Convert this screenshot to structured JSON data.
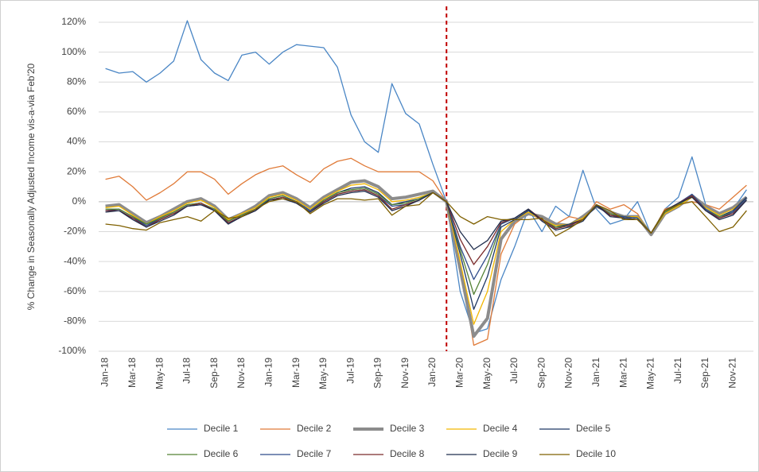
{
  "chart_data": {
    "type": "line",
    "y_label": "% Change in Seasonally Adjusted Income vis-a-via Feb'20",
    "categories": [
      "Jan-18",
      null,
      "Mar-18",
      null,
      "May-18",
      null,
      "Jul-18",
      null,
      "Sep-18",
      null,
      "Nov-18",
      null,
      "Jan-19",
      null,
      "Mar-19",
      null,
      "May-19",
      null,
      "Jul-19",
      null,
      "Sep-19",
      null,
      "Nov-19",
      null,
      "Jan-20",
      null,
      "Mar-20",
      null,
      "May-20",
      null,
      "Jul-20",
      null,
      "Sep-20",
      null,
      "Nov-20",
      null,
      "Jan-21",
      null,
      "Mar-21",
      null,
      "May-21",
      null,
      "Jul-21",
      null,
      "Sep-21",
      null,
      "Nov-21",
      null
    ],
    "ylim": [
      -100,
      120
    ],
    "yticks": [
      {
        "value": -100,
        "label": "-100%"
      },
      {
        "value": -80,
        "label": "-80%"
      },
      {
        "value": -60,
        "label": "-60%"
      },
      {
        "value": -40,
        "label": "-40%"
      },
      {
        "value": -20,
        "label": "-20%"
      },
      {
        "value": 0,
        "label": "0%"
      },
      {
        "value": 20,
        "label": "20%"
      },
      {
        "value": 40,
        "label": "40%"
      },
      {
        "value": 60,
        "label": "60%"
      },
      {
        "value": 80,
        "label": "80%"
      },
      {
        "value": 100,
        "label": "100%"
      },
      {
        "value": 120,
        "label": "120%"
      }
    ],
    "grid": true,
    "reference_line": {
      "index": 25,
      "color": "#c00000"
    },
    "legend": "bottom",
    "series": [
      {
        "name": "Decile 1",
        "color": "#4a86c5",
        "width": 1.3,
        "values": [
          89,
          86,
          87,
          80,
          86,
          94,
          121,
          95,
          86,
          81,
          98,
          100,
          92,
          100,
          105,
          104,
          103,
          90,
          58,
          40,
          33,
          79,
          59,
          52,
          25,
          0,
          -60,
          -88,
          -85,
          -52,
          -30,
          -5,
          -20,
          -3,
          -10,
          21,
          -5,
          -15,
          -12,
          0,
          -22,
          -5,
          3,
          30,
          -2,
          -8,
          -5,
          8
        ]
      },
      {
        "name": "Decile 2",
        "color": "#e07b39",
        "width": 1.3,
        "values": [
          15,
          17,
          10,
          1,
          6,
          12,
          20,
          20,
          15,
          5,
          12,
          18,
          22,
          24,
          18,
          13,
          22,
          27,
          29,
          24,
          20,
          20,
          20,
          20,
          14,
          0,
          -40,
          -96,
          -92,
          -35,
          -15,
          -8,
          -12,
          -15,
          -10,
          -12,
          0,
          -5,
          -2,
          -8,
          -22,
          -5,
          -2,
          0,
          -2,
          -5,
          3,
          11
        ]
      },
      {
        "name": "Decile 3",
        "color": "#8c8c8c",
        "width": 4,
        "values": [
          -3,
          -2,
          -8,
          -14,
          -10,
          -5,
          0,
          2,
          -3,
          -12,
          -8,
          -3,
          4,
          6,
          2,
          -4,
          3,
          8,
          13,
          14,
          10,
          2,
          3,
          5,
          7,
          0,
          -45,
          -90,
          -78,
          -25,
          -13,
          -8,
          -10,
          -15,
          -16,
          -10,
          -3,
          -7,
          -10,
          -10,
          -22,
          -8,
          -3,
          4,
          -3,
          -8,
          -4,
          3
        ]
      },
      {
        "name": "Decile 4",
        "color": "#f2b701",
        "width": 1.3,
        "values": [
          -4,
          -3,
          -9,
          -15,
          -10,
          -6,
          -1,
          1,
          -4,
          -12,
          -8,
          -4,
          3,
          5,
          1,
          -5,
          2,
          7,
          11,
          12,
          8,
          0,
          1,
          3,
          6,
          0,
          -40,
          -82,
          -60,
          -20,
          -12,
          -7,
          -12,
          -16,
          -15,
          -11,
          -3,
          -8,
          -10,
          -10,
          -21,
          -8,
          -3,
          3,
          -4,
          -9,
          -5,
          2
        ]
      },
      {
        "name": "Decile 5",
        "color": "#1f3864",
        "width": 1.3,
        "values": [
          -6,
          -5,
          -10,
          -16,
          -11,
          -7,
          -2,
          -1,
          -5,
          -13,
          -9,
          -5,
          2,
          4,
          0,
          -6,
          1,
          6,
          9,
          10,
          6,
          -2,
          0,
          2,
          6,
          0,
          -35,
          -72,
          -50,
          -17,
          -12,
          -6,
          -12,
          -17,
          -15,
          -12,
          -3,
          -9,
          -10,
          -11,
          -21,
          -7,
          -2,
          4,
          -5,
          -10,
          -6,
          3
        ]
      },
      {
        "name": "Decile 6",
        "color": "#548235",
        "width": 1.3,
        "values": [
          -5,
          -5,
          -10,
          -15,
          -11,
          -7,
          -2,
          -1,
          -5,
          -13,
          -9,
          -5,
          2,
          4,
          0,
          -6,
          1,
          6,
          8,
          9,
          5,
          -2,
          -1,
          2,
          6,
          0,
          -32,
          -62,
          -42,
          -15,
          -11,
          -5,
          -12,
          -17,
          -16,
          -12,
          -2,
          -8,
          -10,
          -11,
          -21,
          -7,
          -2,
          4,
          -5,
          -10,
          -7,
          2
        ]
      },
      {
        "name": "Decile 7",
        "color": "#2f4b8a",
        "width": 1.3,
        "values": [
          -6,
          -6,
          -11,
          -16,
          -12,
          -8,
          -3,
          -2,
          -6,
          -14,
          -10,
          -5,
          1,
          3,
          0,
          -6,
          0,
          5,
          7,
          8,
          4,
          -3,
          -2,
          1,
          6,
          0,
          -30,
          -52,
          -36,
          -15,
          -11,
          -5,
          -12,
          -18,
          -16,
          -12,
          -2,
          -9,
          -10,
          -11,
          -21,
          -6,
          -1,
          5,
          -5,
          -11,
          -7,
          2
        ]
      },
      {
        "name": "Decile 8",
        "color": "#7b2b2b",
        "width": 1.3,
        "values": [
          -6,
          -6,
          -11,
          -17,
          -12,
          -8,
          -3,
          -1,
          -6,
          -14,
          -10,
          -6,
          1,
          3,
          -1,
          -7,
          0,
          5,
          7,
          8,
          4,
          -5,
          -2,
          1,
          6,
          0,
          -25,
          -42,
          -30,
          -14,
          -11,
          -5,
          -12,
          -18,
          -16,
          -12,
          -2,
          -9,
          -11,
          -12,
          -21,
          -6,
          -1,
          4,
          -6,
          -11,
          -8,
          1
        ]
      },
      {
        "name": "Decile 9",
        "color": "#1f2d4d",
        "width": 1.3,
        "values": [
          -7,
          -6,
          -12,
          -17,
          -13,
          -9,
          -3,
          -2,
          -6,
          -15,
          -10,
          -6,
          1,
          2,
          -1,
          -7,
          -1,
          4,
          6,
          7,
          3,
          -6,
          -3,
          1,
          6,
          0,
          -20,
          -32,
          -26,
          -13,
          -11,
          -5,
          -13,
          -19,
          -17,
          -13,
          -2,
          -10,
          -11,
          -12,
          -21,
          -6,
          -1,
          3,
          -6,
          -12,
          -9,
          1
        ]
      },
      {
        "name": "Decile 10",
        "color": "#7f6000",
        "width": 1.3,
        "values": [
          -15,
          -16,
          -18,
          -19,
          -14,
          -12,
          -10,
          -13,
          -6,
          -11,
          -10,
          -5,
          0,
          2,
          0,
          -8,
          -2,
          2,
          2,
          1,
          2,
          -9,
          -3,
          -2,
          6,
          0,
          -10,
          -15,
          -10,
          -12,
          -12,
          -12,
          -11,
          -23,
          -18,
          -12,
          -2,
          -6,
          -12,
          -12,
          -21,
          -6,
          -2,
          0,
          -10,
          -20,
          -17,
          -6
        ]
      }
    ]
  }
}
